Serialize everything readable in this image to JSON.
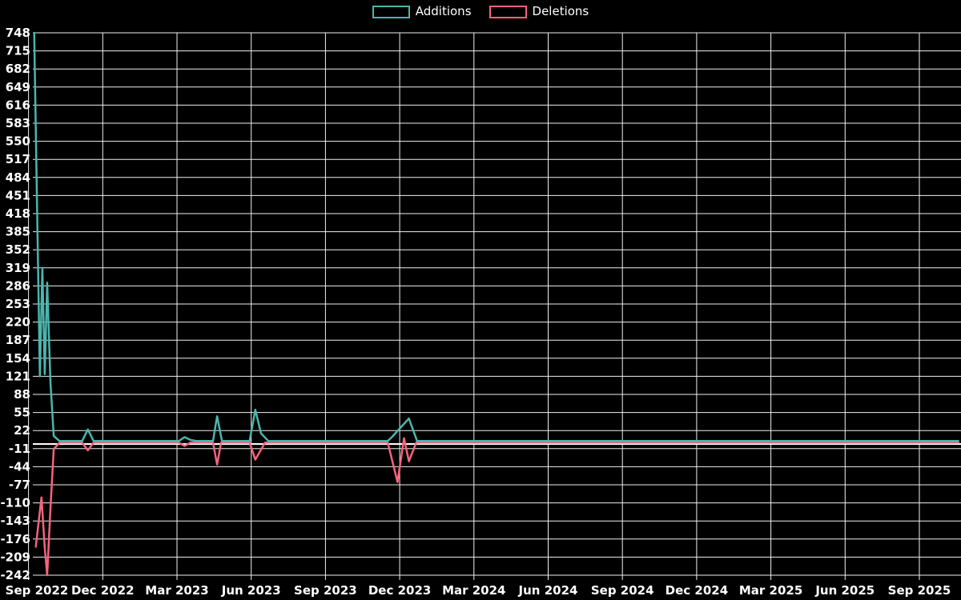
{
  "chart_data": {
    "type": "line",
    "title": "",
    "legend": {
      "position": "top-center",
      "additions_label": "Additions",
      "deletions_label": "Deletions"
    },
    "axis": {
      "background": "#000000",
      "grid": true,
      "grid_color": "#f0f0f0",
      "zero_axis_line": true,
      "zero_axis_color": "#ffffff",
      "label_color": "#ffffff",
      "x_start_date": "2022-09-01",
      "x_end_date": "2025-09-01",
      "ylim": [
        -242,
        748
      ],
      "y_tick_step": 33
    },
    "y_ticks": [
      748,
      715,
      682,
      649,
      616,
      583,
      550,
      517,
      484,
      451,
      418,
      385,
      352,
      319,
      286,
      253,
      220,
      187,
      154,
      121,
      88,
      55,
      22,
      -11,
      -44,
      -77,
      -110,
      -143,
      -176,
      -209,
      -242
    ],
    "x_ticks": [
      {
        "label": "Sep 2022",
        "date": "2022-09-01"
      },
      {
        "label": "Dec 2022",
        "date": "2022-12-01"
      },
      {
        "label": "Mar 2023",
        "date": "2023-03-01"
      },
      {
        "label": "Jun 2023",
        "date": "2023-06-01"
      },
      {
        "label": "Sep 2023",
        "date": "2023-09-01"
      },
      {
        "label": "Dec 2023",
        "date": "2023-12-01"
      },
      {
        "label": "Mar 2024",
        "date": "2024-03-01"
      },
      {
        "label": "Jun 2024",
        "date": "2024-06-01"
      },
      {
        "label": "Sep 2024",
        "date": "2024-09-01"
      },
      {
        "label": "Dec 2024",
        "date": "2024-12-01"
      },
      {
        "label": "Mar 2025",
        "date": "2025-03-01"
      },
      {
        "label": "Jun 2025",
        "date": "2025-06-01"
      },
      {
        "label": "Sep 2025",
        "date": "2025-09-01"
      }
    ],
    "series": [
      {
        "name": "Deletions",
        "color": "#f5647e",
        "points": [
          [
            "2022-09-10",
            -190
          ],
          [
            "2022-09-17",
            -100
          ],
          [
            "2022-09-21",
            -192
          ],
          [
            "2022-09-24",
            -242
          ],
          [
            "2022-09-28",
            -120
          ],
          [
            "2022-10-02",
            -12
          ],
          [
            "2022-10-09",
            0
          ],
          [
            "2022-11-06",
            0
          ],
          [
            "2022-11-13",
            -14
          ],
          [
            "2022-11-20",
            0
          ],
          [
            "2023-03-05",
            0
          ],
          [
            "2023-03-12",
            -6
          ],
          [
            "2023-03-19",
            0
          ],
          [
            "2023-04-16",
            0
          ],
          [
            "2023-04-21",
            -40
          ],
          [
            "2023-04-26",
            0
          ],
          [
            "2023-05-31",
            0
          ],
          [
            "2023-06-07",
            -31
          ],
          [
            "2023-06-19",
            0
          ],
          [
            "2023-11-17",
            0
          ],
          [
            "2023-11-29",
            -72
          ],
          [
            "2023-12-07",
            8
          ],
          [
            "2023-12-13",
            -34
          ],
          [
            "2023-12-22",
            0
          ],
          [
            "2025-10-19",
            0
          ]
        ]
      },
      {
        "name": "Additions",
        "color": "#4ab6ae",
        "points": [
          [
            "2022-09-08",
            748
          ],
          [
            "2022-09-15",
            121
          ],
          [
            "2022-09-18",
            319
          ],
          [
            "2022-09-21",
            125
          ],
          [
            "2022-09-24",
            292
          ],
          [
            "2022-09-28",
            110
          ],
          [
            "2022-10-02",
            12
          ],
          [
            "2022-10-09",
            3
          ],
          [
            "2022-11-06",
            3
          ],
          [
            "2022-11-13",
            24
          ],
          [
            "2022-11-20",
            3
          ],
          [
            "2023-03-05",
            3
          ],
          [
            "2023-03-12",
            10
          ],
          [
            "2023-03-19",
            5
          ],
          [
            "2023-03-26",
            3
          ],
          [
            "2023-04-16",
            3
          ],
          [
            "2023-04-21",
            48
          ],
          [
            "2023-04-27",
            3
          ],
          [
            "2023-05-31",
            3
          ],
          [
            "2023-06-07",
            60
          ],
          [
            "2023-06-14",
            17
          ],
          [
            "2023-06-23",
            3
          ],
          [
            "2023-11-17",
            3
          ],
          [
            "2023-11-22",
            10
          ],
          [
            "2023-12-13",
            44
          ],
          [
            "2023-12-23",
            3
          ],
          [
            "2025-10-19",
            3
          ]
        ]
      }
    ]
  }
}
